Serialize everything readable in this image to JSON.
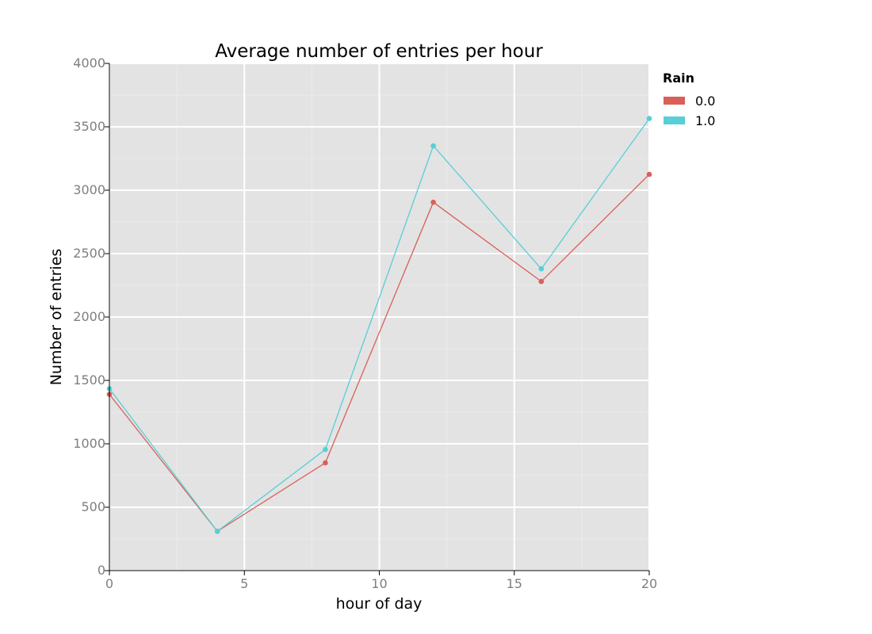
{
  "chart_data": {
    "type": "line",
    "title": "Average number of entries per hour",
    "xlabel": "hour of day",
    "ylabel": "Number of entries",
    "xlim": [
      0,
      20
    ],
    "ylim": [
      0,
      4000
    ],
    "x_ticks": [
      0,
      5,
      10,
      15,
      20
    ],
    "y_ticks": [
      0,
      500,
      1000,
      1500,
      2000,
      2500,
      3000,
      3500,
      4000
    ],
    "grid": true,
    "legend": {
      "title": "Rain",
      "position": "right",
      "entries": [
        "0.0",
        "1.0"
      ]
    },
    "x": [
      0,
      4,
      8,
      12,
      16,
      20
    ],
    "series": [
      {
        "name": "0.0",
        "color": "#d9605a",
        "values": [
          1390,
          310,
          850,
          2905,
          2280,
          3125
        ]
      },
      {
        "name": "1.0",
        "color": "#56cfd6",
        "values": [
          1435,
          310,
          955,
          3350,
          2380,
          3565
        ]
      }
    ],
    "colors": {
      "panel": "#e3e3e3",
      "grid_major": "#ffffff",
      "grid_minor": "#ebebeb",
      "tick": "#7f7f7f"
    }
  }
}
